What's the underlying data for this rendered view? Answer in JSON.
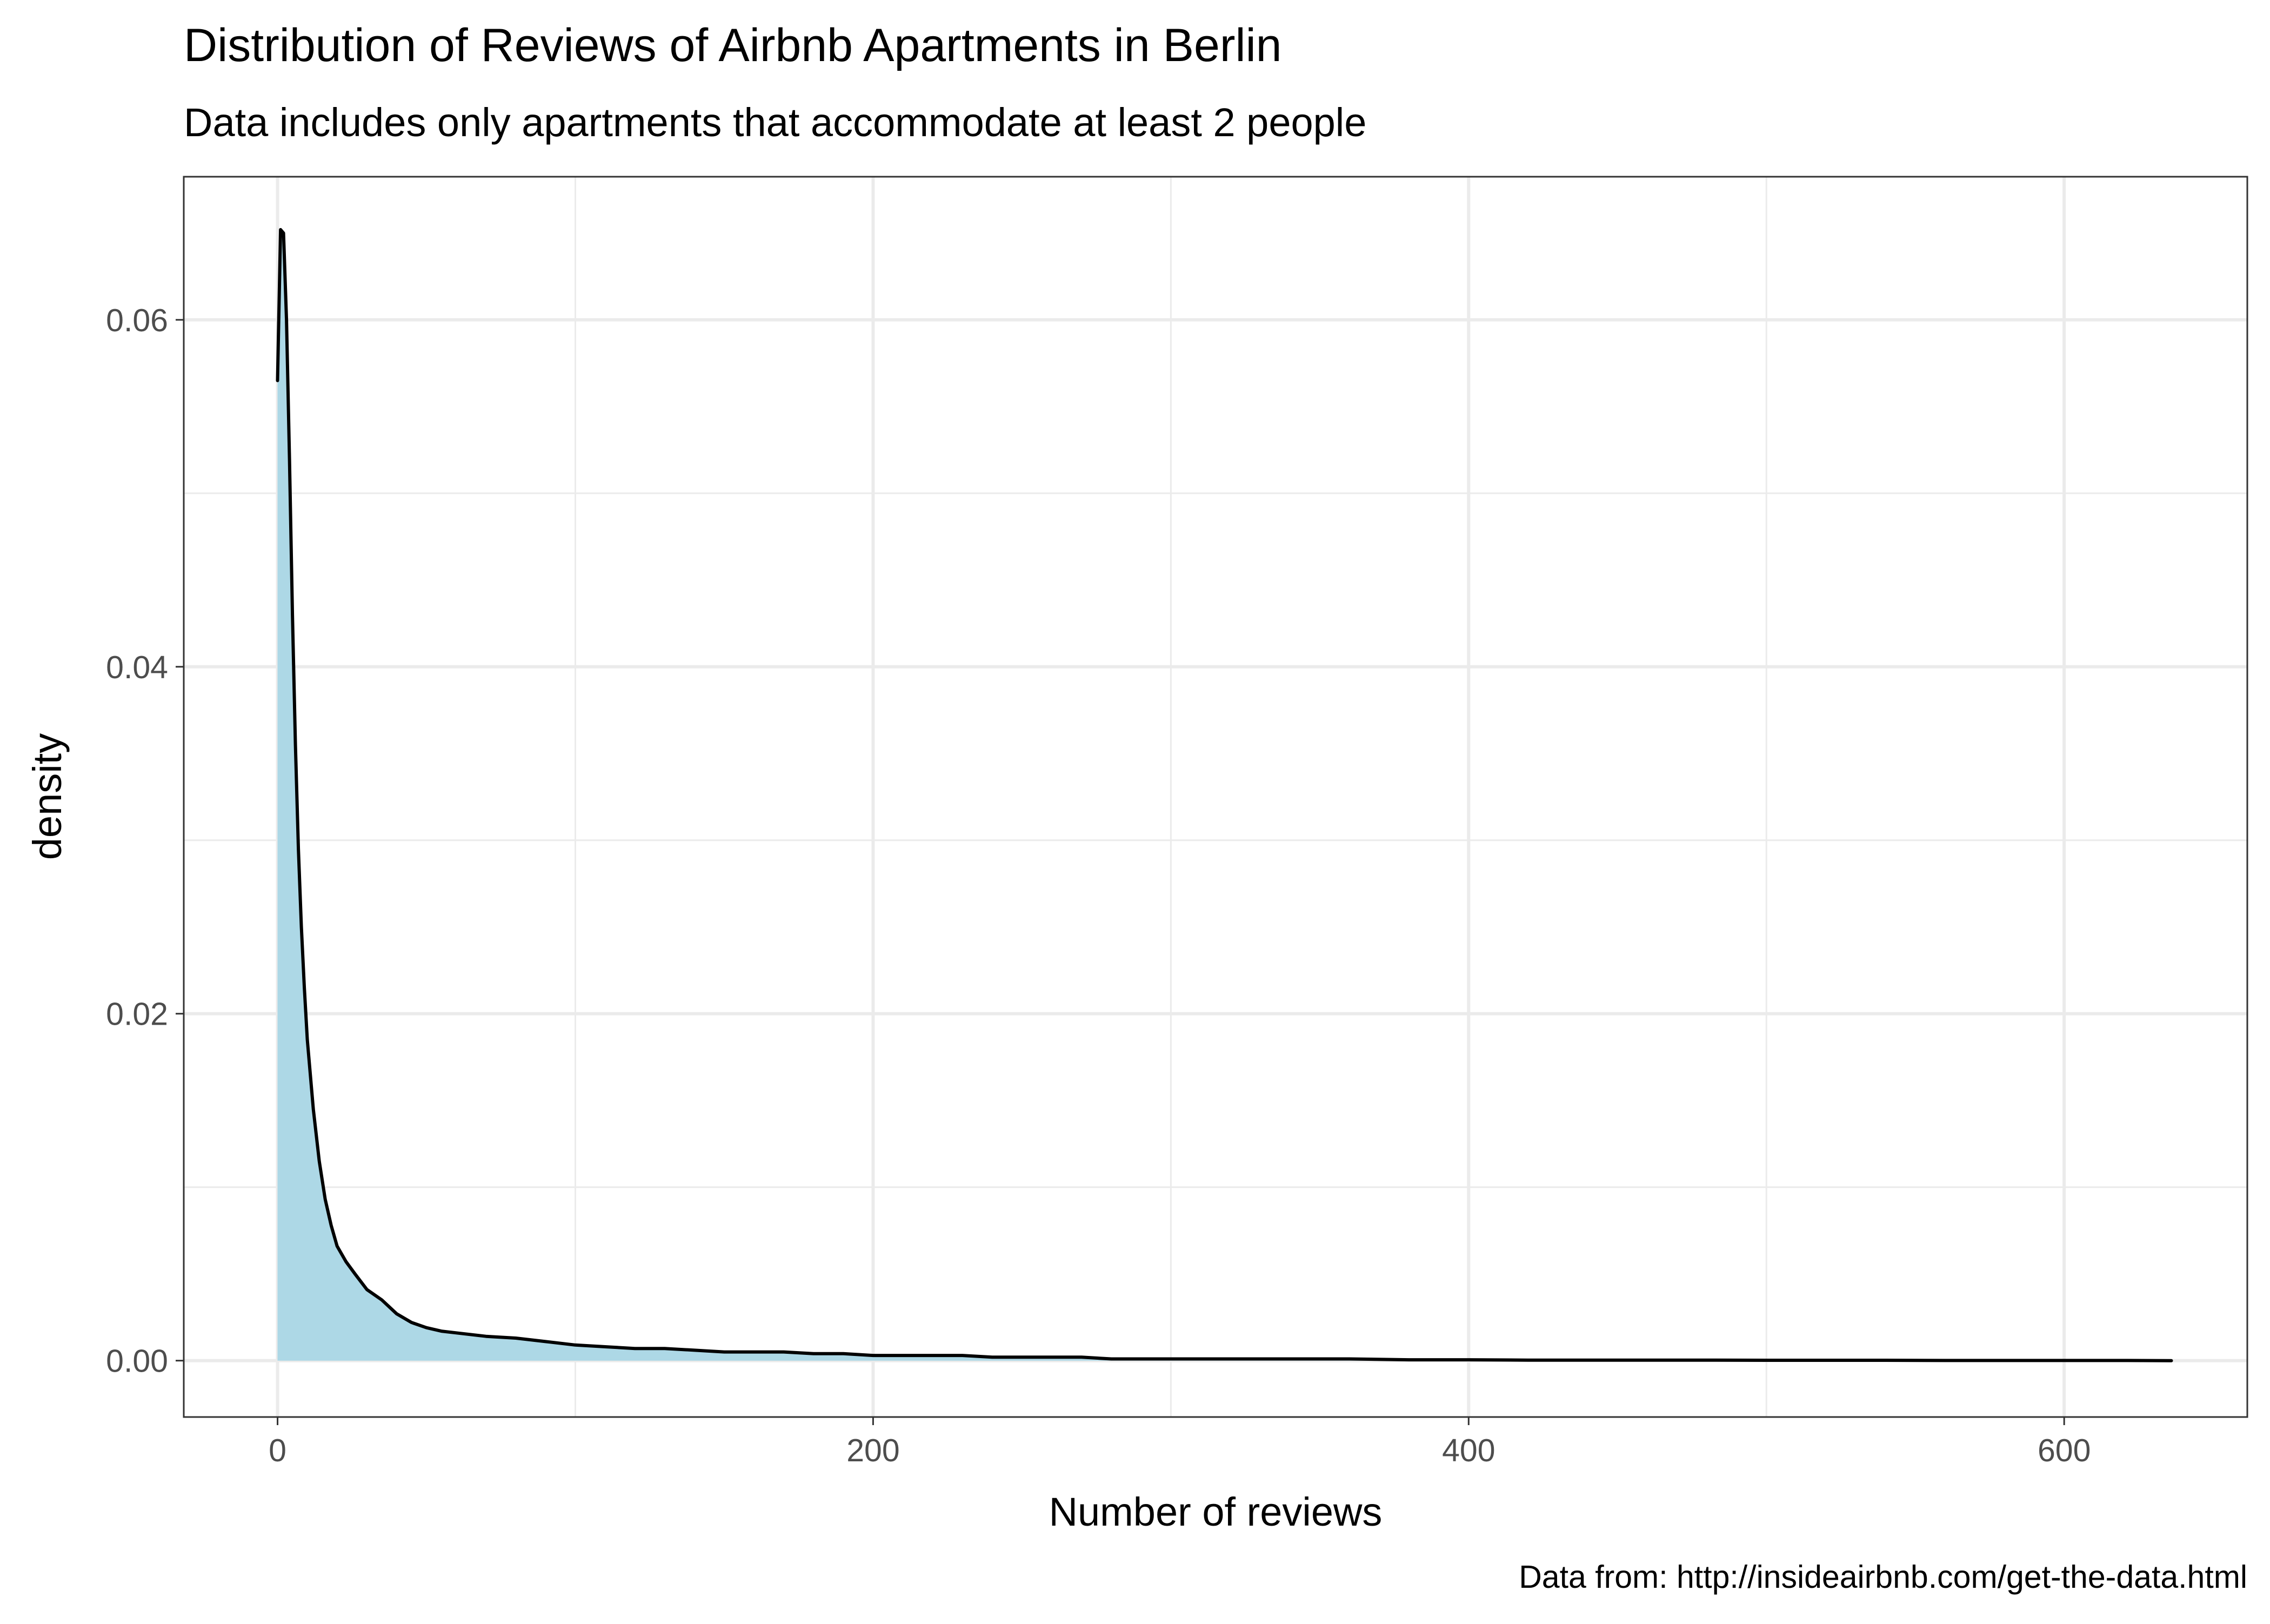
{
  "chart_data": {
    "type": "area",
    "title": "Distribution of Reviews of Airbnb Apartments in Berlin",
    "subtitle": "Data includes only apartments that accommodate at least 2 people",
    "xlabel": "Number of reviews",
    "ylabel": "density",
    "caption": "Data from: http://insideairbnb.com/get-the-data.html",
    "xlim": [
      -31.5,
      661.5
    ],
    "ylim": [
      -0.00325,
      0.06825
    ],
    "x_ticks": [
      0,
      200,
      400,
      600
    ],
    "x_tick_labels": [
      "0",
      "200",
      "400",
      "600"
    ],
    "x_minor_ticks": [
      100,
      300,
      500
    ],
    "y_ticks": [
      0.0,
      0.02,
      0.04,
      0.06
    ],
    "y_tick_labels": [
      "0.00",
      "0.02",
      "0.04",
      "0.06"
    ],
    "y_minor_ticks": [
      0.01,
      0.03,
      0.05
    ],
    "grid": true,
    "fill_color": "#add8e6",
    "line_color": "#000000",
    "series": [
      {
        "x": [
          0,
          1,
          2,
          3,
          4,
          5,
          6,
          7,
          8,
          9,
          10,
          12,
          14,
          16,
          18,
          20,
          23,
          26,
          30,
          35,
          40,
          45,
          50,
          55,
          60,
          70,
          80,
          90,
          100,
          110,
          120,
          130,
          140,
          150,
          160,
          170,
          180,
          190,
          200,
          210,
          220,
          230,
          240,
          250,
          260,
          270,
          280,
          300,
          320,
          340,
          360,
          380,
          400,
          420,
          440,
          460,
          480,
          500,
          520,
          540,
          560,
          580,
          600,
          620,
          636
        ],
        "y": [
          0.0565,
          0.0652,
          0.065,
          0.06,
          0.052,
          0.043,
          0.0355,
          0.0295,
          0.025,
          0.0215,
          0.0185,
          0.0145,
          0.0115,
          0.0093,
          0.0078,
          0.0066,
          0.0057,
          0.005,
          0.0041,
          0.0035,
          0.0027,
          0.0022,
          0.0019,
          0.0017,
          0.0016,
          0.0014,
          0.0013,
          0.0011,
          0.0009,
          0.0008,
          0.0007,
          0.0007,
          0.0006,
          0.0005,
          0.0005,
          0.0005,
          0.0004,
          0.0004,
          0.0003,
          0.0003,
          0.0003,
          0.0003,
          0.0002,
          0.0002,
          0.0002,
          0.0002,
          0.0001,
          0.0001,
          0.0001,
          0.0001,
          0.0001,
          5e-05,
          5e-05,
          3e-05,
          3e-05,
          3e-05,
          3e-05,
          2e-05,
          2e-05,
          2e-05,
          1e-05,
          1e-05,
          1e-05,
          1e-05,
          0.0
        ]
      }
    ]
  }
}
